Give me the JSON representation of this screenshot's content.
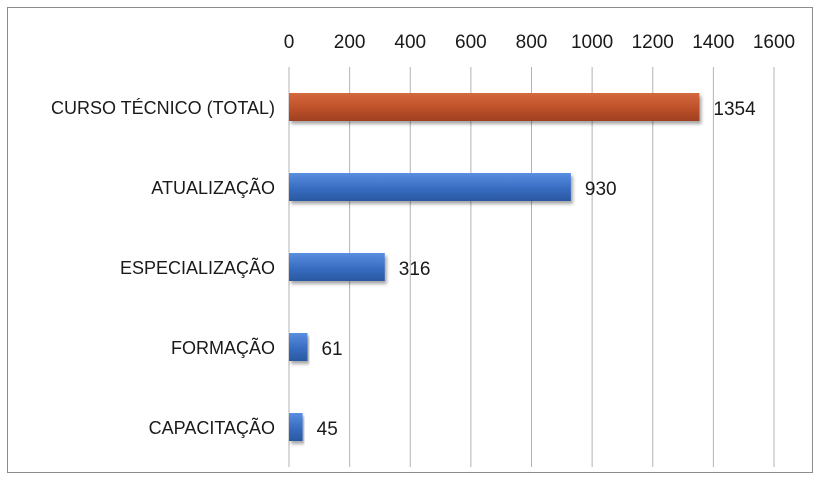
{
  "chart_data": {
    "type": "bar",
    "orientation": "horizontal",
    "categories": [
      "CURSO TÉCNICO (TOTAL)",
      "ATUALIZAÇÃO",
      "ESPECIALIZAÇÃO",
      "FORMAÇÃO",
      "CAPACITAÇÃO"
    ],
    "values": [
      1354,
      930,
      316,
      61,
      45
    ],
    "data_labels": [
      "1354",
      "930",
      "316",
      "61",
      "45"
    ],
    "bar_colors": [
      "#c0522b",
      "#3a6fc4",
      "#3a6fc4",
      "#3a6fc4",
      "#3a6fc4"
    ],
    "x_ticks": [
      0,
      200,
      400,
      600,
      800,
      1000,
      1200,
      1400,
      1600
    ],
    "xlim": [
      0,
      1600
    ],
    "x_axis_position": "top",
    "grid": true,
    "legend": "none",
    "title": "",
    "xlabel": "",
    "ylabel": ""
  }
}
